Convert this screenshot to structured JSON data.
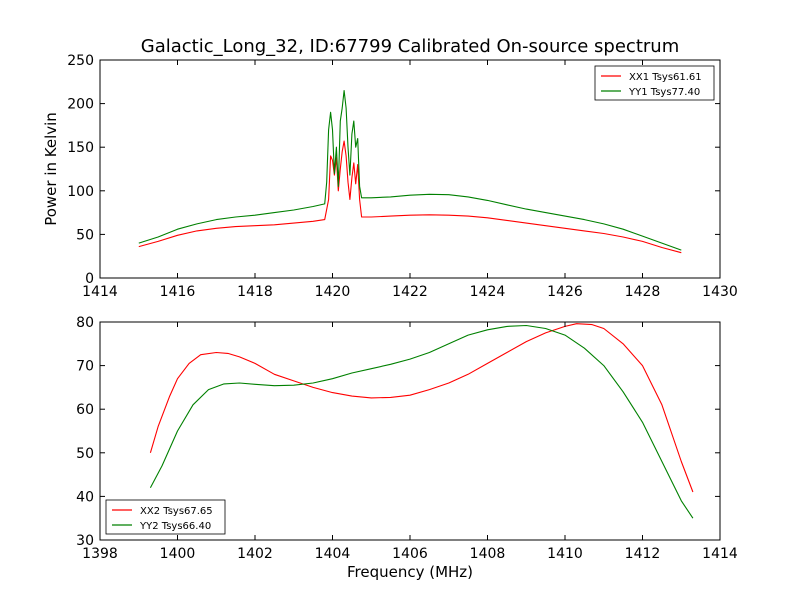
{
  "chart_data": [
    {
      "type": "line",
      "title": "Galactic_Long_32, ID:67799 Calibrated On-source spectrum",
      "xlabel": "",
      "ylabel": "Power in Kelvin",
      "xlim": [
        1414,
        1430
      ],
      "ylim": [
        0,
        250
      ],
      "xticks": [
        "1414",
        "1416",
        "1418",
        "1420",
        "1422",
        "1424",
        "1426",
        "1428",
        "1430"
      ],
      "yticks": [
        "0",
        "50",
        "100",
        "150",
        "200",
        "250"
      ],
      "legend_position": "top-right",
      "series": [
        {
          "name": "XX1 Tsys61.61",
          "color": "#ff0000",
          "points": [
            [
              1415.0,
              36
            ],
            [
              1415.5,
              42
            ],
            [
              1416.0,
              49
            ],
            [
              1416.5,
              54
            ],
            [
              1417.0,
              57
            ],
            [
              1417.5,
              59
            ],
            [
              1418.0,
              60
            ],
            [
              1418.5,
              61
            ],
            [
              1419.0,
              63
            ],
            [
              1419.5,
              65
            ],
            [
              1419.8,
              67
            ],
            [
              1419.9,
              90
            ],
            [
              1419.95,
              140
            ],
            [
              1420.0,
              135
            ],
            [
              1420.05,
              118
            ],
            [
              1420.1,
              138
            ],
            [
              1420.15,
              100
            ],
            [
              1420.2,
              125
            ],
            [
              1420.25,
              145
            ],
            [
              1420.3,
              157
            ],
            [
              1420.35,
              140
            ],
            [
              1420.4,
              110
            ],
            [
              1420.45,
              90
            ],
            [
              1420.5,
              115
            ],
            [
              1420.55,
              132
            ],
            [
              1420.6,
              108
            ],
            [
              1420.65,
              130
            ],
            [
              1420.7,
              90
            ],
            [
              1420.75,
              70
            ],
            [
              1421.0,
              70
            ],
            [
              1421.5,
              71
            ],
            [
              1422.0,
              72
            ],
            [
              1422.5,
              72.5
            ],
            [
              1423.0,
              72
            ],
            [
              1423.5,
              71
            ],
            [
              1424.0,
              69
            ],
            [
              1424.5,
              66
            ],
            [
              1425.0,
              63
            ],
            [
              1425.5,
              60
            ],
            [
              1426.0,
              57
            ],
            [
              1426.5,
              54
            ],
            [
              1427.0,
              51
            ],
            [
              1427.5,
              47
            ],
            [
              1428.0,
              42
            ],
            [
              1428.5,
              35
            ],
            [
              1429.0,
              29
            ]
          ]
        },
        {
          "name": "YY1 Tsys77.40",
          "color": "#008000",
          "points": [
            [
              1415.0,
              40
            ],
            [
              1415.5,
              47
            ],
            [
              1416.0,
              56
            ],
            [
              1416.5,
              62
            ],
            [
              1417.0,
              67
            ],
            [
              1417.5,
              70
            ],
            [
              1418.0,
              72
            ],
            [
              1418.5,
              75
            ],
            [
              1419.0,
              78
            ],
            [
              1419.5,
              82
            ],
            [
              1419.8,
              85
            ],
            [
              1419.85,
              110
            ],
            [
              1419.9,
              170
            ],
            [
              1419.95,
              190
            ],
            [
              1420.0,
              170
            ],
            [
              1420.05,
              120
            ],
            [
              1420.1,
              150
            ],
            [
              1420.15,
              105
            ],
            [
              1420.2,
              180
            ],
            [
              1420.25,
              195
            ],
            [
              1420.3,
              215
            ],
            [
              1420.35,
              195
            ],
            [
              1420.4,
              150
            ],
            [
              1420.45,
              118
            ],
            [
              1420.5,
              165
            ],
            [
              1420.55,
              180
            ],
            [
              1420.6,
              150
            ],
            [
              1420.65,
              160
            ],
            [
              1420.7,
              105
            ],
            [
              1420.75,
              92
            ],
            [
              1421.0,
              92
            ],
            [
              1421.5,
              93
            ],
            [
              1422.0,
              95
            ],
            [
              1422.5,
              96
            ],
            [
              1423.0,
              95.5
            ],
            [
              1423.5,
              93
            ],
            [
              1424.0,
              89
            ],
            [
              1424.5,
              84
            ],
            [
              1425.0,
              79
            ],
            [
              1425.5,
              75
            ],
            [
              1426.0,
              71
            ],
            [
              1426.5,
              67
            ],
            [
              1427.0,
              62
            ],
            [
              1427.5,
              56
            ],
            [
              1428.0,
              48
            ],
            [
              1428.5,
              40
            ],
            [
              1429.0,
              32
            ]
          ]
        }
      ]
    },
    {
      "type": "line",
      "title": "",
      "xlabel": "Frequency (MHz)",
      "ylabel": "",
      "xlim": [
        1398,
        1414
      ],
      "ylim": [
        30,
        80
      ],
      "xticks": [
        "1398",
        "1400",
        "1402",
        "1404",
        "1406",
        "1408",
        "1410",
        "1412",
        "1414"
      ],
      "yticks": [
        "30",
        "40",
        "50",
        "60",
        "70",
        "80"
      ],
      "legend_position": "bottom-left",
      "series": [
        {
          "name": "XX2 Tsys67.65",
          "color": "#ff0000",
          "points": [
            [
              1399.3,
              50
            ],
            [
              1399.5,
              56
            ],
            [
              1399.8,
              63
            ],
            [
              1400.0,
              67
            ],
            [
              1400.3,
              70.5
            ],
            [
              1400.6,
              72.5
            ],
            [
              1401.0,
              73
            ],
            [
              1401.3,
              72.8
            ],
            [
              1401.6,
              72
            ],
            [
              1402.0,
              70.5
            ],
            [
              1402.5,
              68
            ],
            [
              1403.0,
              66.5
            ],
            [
              1403.5,
              65
            ],
            [
              1404.0,
              63.8
            ],
            [
              1404.5,
              63
            ],
            [
              1405.0,
              62.6
            ],
            [
              1405.5,
              62.7
            ],
            [
              1406.0,
              63.2
            ],
            [
              1406.5,
              64.5
            ],
            [
              1407.0,
              66
            ],
            [
              1407.5,
              68
            ],
            [
              1408.0,
              70.5
            ],
            [
              1408.5,
              73
            ],
            [
              1409.0,
              75.5
            ],
            [
              1409.5,
              77.5
            ],
            [
              1410.0,
              79
            ],
            [
              1410.3,
              79.6
            ],
            [
              1410.7,
              79.4
            ],
            [
              1411.0,
              78.5
            ],
            [
              1411.5,
              75
            ],
            [
              1412.0,
              70
            ],
            [
              1412.5,
              61
            ],
            [
              1413.0,
              48
            ],
            [
              1413.3,
              41
            ]
          ]
        },
        {
          "name": "YY2 Tsys66.40",
          "color": "#008000",
          "points": [
            [
              1399.3,
              42
            ],
            [
              1399.6,
              47
            ],
            [
              1400.0,
              55
            ],
            [
              1400.4,
              61
            ],
            [
              1400.8,
              64.5
            ],
            [
              1401.2,
              65.8
            ],
            [
              1401.6,
              66
            ],
            [
              1402.0,
              65.7
            ],
            [
              1402.5,
              65.4
            ],
            [
              1403.0,
              65.5
            ],
            [
              1403.5,
              66
            ],
            [
              1404.0,
              67
            ],
            [
              1404.5,
              68.3
            ],
            [
              1405.0,
              69.3
            ],
            [
              1405.5,
              70.3
            ],
            [
              1406.0,
              71.5
            ],
            [
              1406.5,
              73
            ],
            [
              1407.0,
              75
            ],
            [
              1407.5,
              77
            ],
            [
              1408.0,
              78.2
            ],
            [
              1408.5,
              79
            ],
            [
              1409.0,
              79.2
            ],
            [
              1409.5,
              78.5
            ],
            [
              1410.0,
              77
            ],
            [
              1410.5,
              74
            ],
            [
              1411.0,
              70
            ],
            [
              1411.5,
              64
            ],
            [
              1412.0,
              57
            ],
            [
              1412.5,
              48
            ],
            [
              1413.0,
              39
            ],
            [
              1413.3,
              35
            ]
          ]
        }
      ]
    }
  ]
}
